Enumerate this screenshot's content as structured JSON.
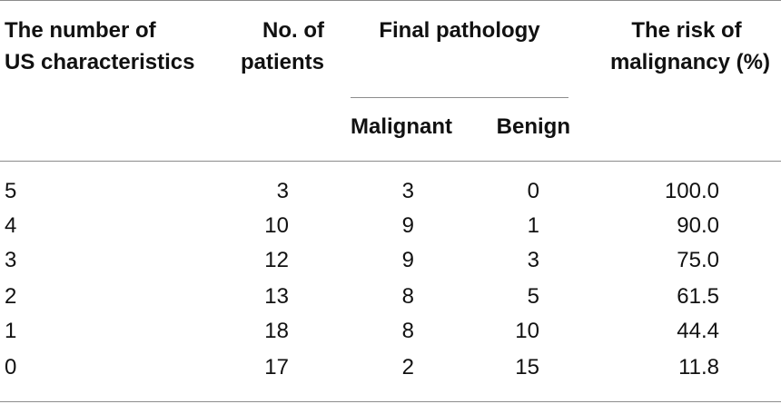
{
  "table": {
    "headers": {
      "col1_line1": "The number of",
      "col1_line2": "US characteristics",
      "col2_line1": "No. of",
      "col2_line2": "patients",
      "group": "Final pathology",
      "sub_malignant": "Malignant",
      "sub_benign": "Benign",
      "col5_line1": "The risk of",
      "col5_line2": "malignancy (%)"
    },
    "rows": [
      {
        "characteristics": "5",
        "patients": "3",
        "malignant": "3",
        "benign": "0",
        "risk": "100.0"
      },
      {
        "characteristics": "4",
        "patients": "10",
        "malignant": "9",
        "benign": "1",
        "risk": "90.0"
      },
      {
        "characteristics": "3",
        "patients": "12",
        "malignant": "9",
        "benign": "3",
        "risk": "75.0"
      },
      {
        "characteristics": "2",
        "patients": "13",
        "malignant": "8",
        "benign": "5",
        "risk": "61.5"
      },
      {
        "characteristics": "1",
        "patients": "18",
        "malignant": "8",
        "benign": "10",
        "risk": "44.4"
      },
      {
        "characteristics": "0",
        "patients": "17",
        "malignant": "2",
        "benign": "15",
        "risk": "11.8"
      }
    ]
  }
}
